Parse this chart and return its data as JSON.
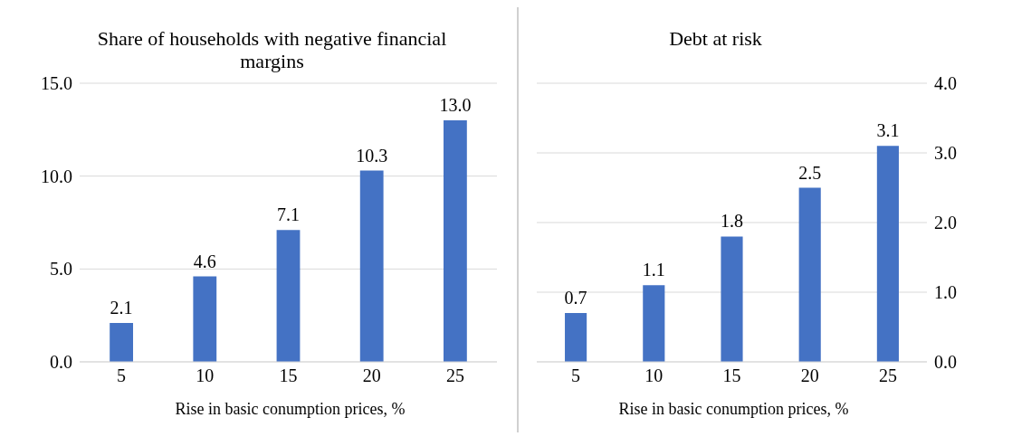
{
  "chart_data": [
    {
      "type": "bar",
      "title": "Share of households with negative financial margins",
      "xlabel": "Rise in basic conumption prices, %",
      "categories": [
        "5",
        "10",
        "15",
        "20",
        "25"
      ],
      "series": [
        {
          "color": "#4472c4",
          "values": [
            2.1,
            4.6,
            7.1,
            10.3,
            13.0
          ],
          "value_labels": [
            "2.1",
            "4.6",
            "7.1",
            "10.3",
            "13.0"
          ]
        }
      ],
      "ylim": [
        0,
        15
      ],
      "yticks": [
        {
          "value": 0,
          "label": "0.0"
        },
        {
          "value": 5,
          "label": "5.0"
        },
        {
          "value": 10,
          "label": "10.0"
        },
        {
          "value": 15,
          "label": "15.0"
        }
      ],
      "grid": "y"
    },
    {
      "type": "bar",
      "title": "Debt at risk",
      "xlabel": "Rise in basic conumption prices, %",
      "categories": [
        "5",
        "10",
        "15",
        "20",
        "25"
      ],
      "series": [
        {
          "color": "#4472c4",
          "values": [
            0.7,
            1.1,
            1.8,
            2.5,
            3.1
          ],
          "axis": "y2"
        }
      ],
      "y2lim": [
        0,
        4
      ],
      "y2ticks": [
        {
          "value": 0,
          "label": "0.0"
        },
        {
          "value": 1,
          "label": "1.0"
        },
        {
          "value": 2,
          "label": "2.0"
        },
        {
          "value": 3,
          "label": "3.0"
        },
        {
          "value": 4,
          "label": "4.0"
        }
      ],
      "grid": "y",
      "data_labels": true
    }
  ]
}
